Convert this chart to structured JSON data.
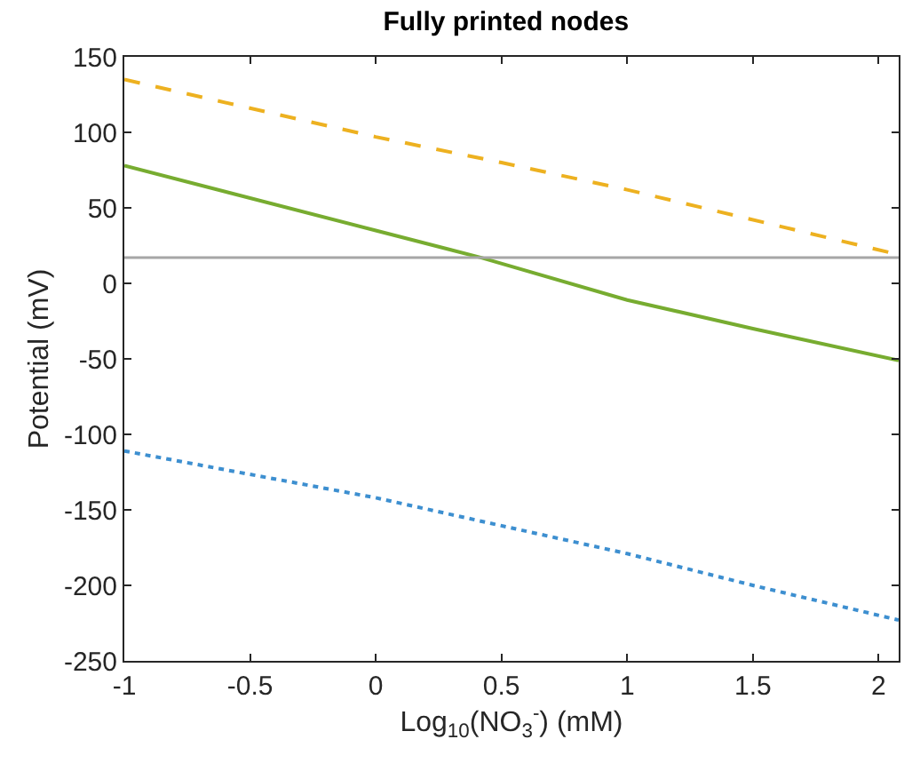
{
  "chart_data": {
    "type": "line",
    "title": "Fully printed nodes",
    "xlabel": "Log$_{10}$(NO$_{3}$$^{-}$) (mM)",
    "ylabel": "Potential (mV)",
    "xlim": [
      -1,
      2.08
    ],
    "xticks": [
      -1,
      -0.5,
      0,
      0.5,
      1,
      1.5,
      2
    ],
    "ylim": [
      -250,
      150
    ],
    "yticks": [
      -250,
      -200,
      -150,
      -100,
      -50,
      0,
      50,
      100,
      150
    ],
    "series": [
      {
        "color": "#edb120",
        "line_style": "dashed",
        "x": [
          -1,
          0,
          0.5,
          1,
          2.08
        ],
        "values": [
          135,
          97,
          80,
          62,
          19
        ]
      },
      {
        "color": "#77ac30",
        "line_style": "solid",
        "x": [
          -1,
          0,
          0.42,
          1,
          1.5,
          2.08
        ],
        "values": [
          78,
          35,
          17,
          -11,
          -30,
          -51
        ]
      },
      {
        "color": "#3d8fd0",
        "line_style": "dotted",
        "x": [
          -1,
          0,
          1,
          1.5,
          2.08
        ],
        "values": [
          -111,
          -142,
          -179,
          -200,
          -223
        ]
      }
    ],
    "ref_lines": [
      {
        "axis": "y",
        "value": 17,
        "color": "#a6a6a6"
      }
    ]
  }
}
